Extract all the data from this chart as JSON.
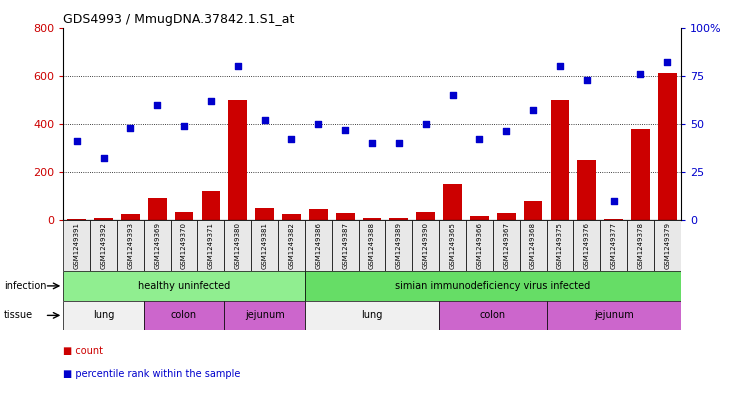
{
  "title": "GDS4993 / MmugDNA.37842.1.S1_at",
  "samples": [
    "GSM1249391",
    "GSM1249392",
    "GSM1249393",
    "GSM1249369",
    "GSM1249370",
    "GSM1249371",
    "GSM1249380",
    "GSM1249381",
    "GSM1249382",
    "GSM1249386",
    "GSM1249387",
    "GSM1249388",
    "GSM1249389",
    "GSM1249390",
    "GSM1249365",
    "GSM1249366",
    "GSM1249367",
    "GSM1249368",
    "GSM1249375",
    "GSM1249376",
    "GSM1249377",
    "GSM1249378",
    "GSM1249379"
  ],
  "counts": [
    5,
    10,
    25,
    90,
    35,
    120,
    500,
    50,
    25,
    45,
    30,
    10,
    10,
    35,
    150,
    15,
    30,
    80,
    500,
    250,
    5,
    380,
    610
  ],
  "percentiles": [
    41,
    32,
    48,
    60,
    49,
    62,
    80,
    52,
    42,
    50,
    47,
    40,
    40,
    50,
    65,
    42,
    46,
    57,
    80,
    73,
    10,
    76,
    82
  ],
  "bar_color": "#cc0000",
  "dot_color": "#0000cc",
  "left_ylim": [
    0,
    800
  ],
  "right_ylim": [
    0,
    100
  ],
  "left_yticks": [
    0,
    200,
    400,
    600,
    800
  ],
  "right_yticks": [
    0,
    25,
    50,
    75,
    100
  ],
  "right_yticklabels": [
    "0",
    "25",
    "50",
    "75",
    "100%"
  ],
  "grid_lines": [
    200,
    400,
    600
  ],
  "infection_groups": [
    {
      "label": "healthy uninfected",
      "start": 0,
      "end": 9,
      "color": "#90ee90"
    },
    {
      "label": "simian immunodeficiency virus infected",
      "start": 9,
      "end": 23,
      "color": "#66dd66"
    }
  ],
  "tissue_groups": [
    {
      "label": "lung",
      "start": 0,
      "end": 3,
      "color": "#f0f0f0"
    },
    {
      "label": "colon",
      "start": 3,
      "end": 6,
      "color": "#cc66cc"
    },
    {
      "label": "jejunum",
      "start": 6,
      "end": 9,
      "color": "#cc66cc"
    },
    {
      "label": "lung",
      "start": 9,
      "end": 14,
      "color": "#f0f0f0"
    },
    {
      "label": "colon",
      "start": 14,
      "end": 18,
      "color": "#cc66cc"
    },
    {
      "label": "jejunum",
      "start": 18,
      "end": 23,
      "color": "#cc66cc"
    }
  ]
}
